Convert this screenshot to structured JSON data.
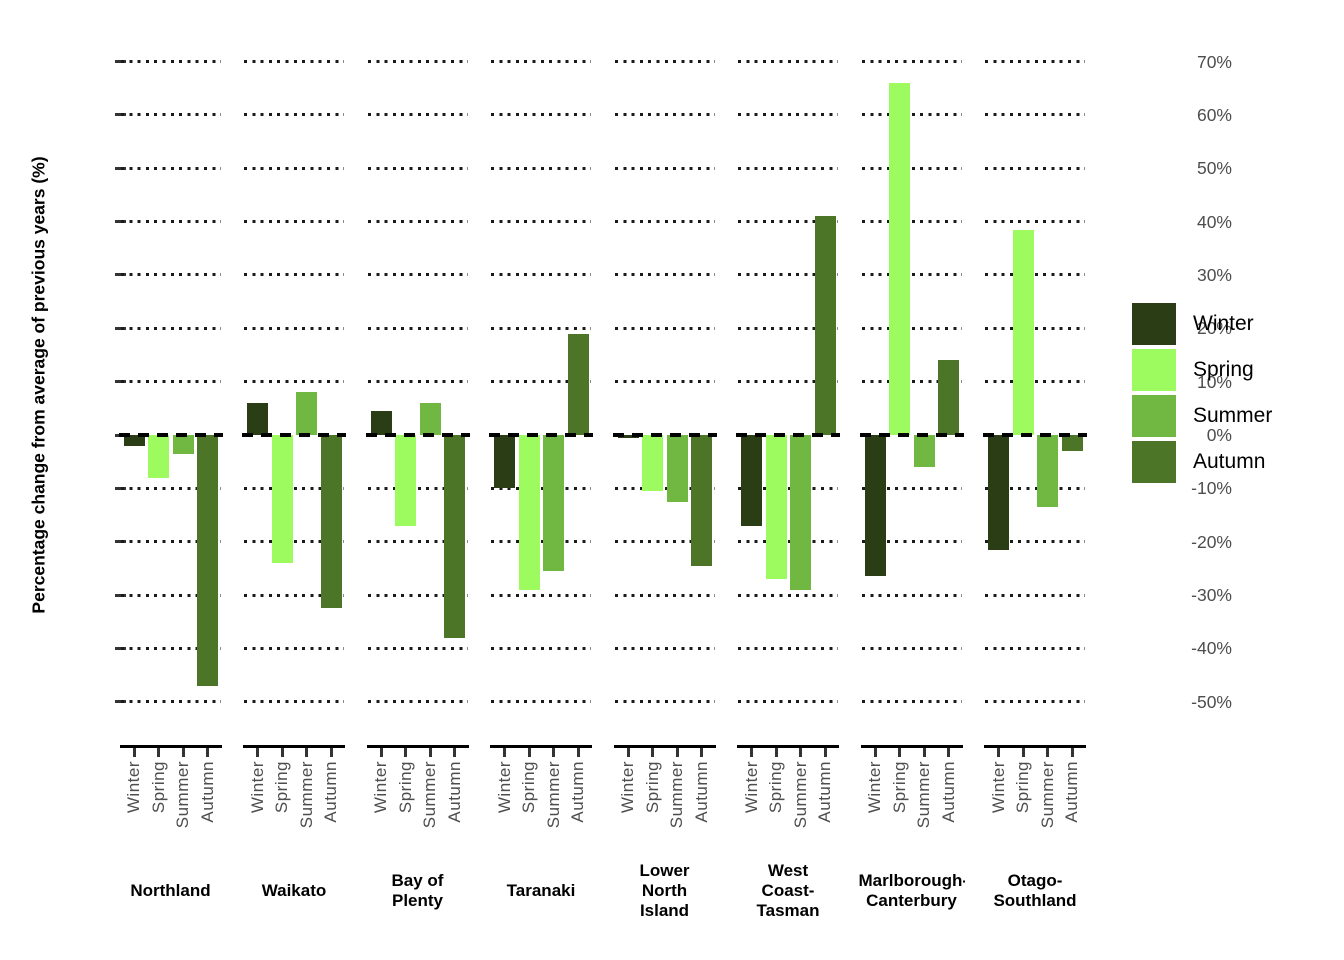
{
  "chart_data": {
    "type": "bar",
    "title": "",
    "ylabel": "Percentage change from average of previous years (%)",
    "ylim": [
      -50,
      70
    ],
    "grid": "dotted-horizontal",
    "zero_line": "dashed-black",
    "legend_position": "right",
    "yticks": [
      {
        "value": 70,
        "label": "70%"
      },
      {
        "value": 60,
        "label": "60%"
      },
      {
        "value": 50,
        "label": "50%"
      },
      {
        "value": 40,
        "label": "40%"
      },
      {
        "value": 30,
        "label": "30%"
      },
      {
        "value": 20,
        "label": "20%"
      },
      {
        "value": 10,
        "label": "10%"
      },
      {
        "value": 0,
        "label": "0%"
      },
      {
        "value": -10,
        "label": "-10%"
      },
      {
        "value": -20,
        "label": "-20%"
      },
      {
        "value": -30,
        "label": "-30%"
      },
      {
        "value": -40,
        "label": "-40%"
      },
      {
        "value": -50,
        "label": "-50%"
      }
    ],
    "categories": [
      "Winter",
      "Spring",
      "Summer",
      "Autumn"
    ],
    "legend": [
      {
        "label": "Winter",
        "color": "#2A3D14"
      },
      {
        "label": "Spring",
        "color": "#9EFB5F"
      },
      {
        "label": "Summer",
        "color": "#71B843"
      },
      {
        "label": "Autumn",
        "color": "#4C7527"
      }
    ],
    "facets": [
      {
        "region": "Northland",
        "label_lines": [
          "Northland"
        ],
        "values": [
          -2,
          -8,
          -3.5,
          -47
        ]
      },
      {
        "region": "Waikato",
        "label_lines": [
          "Waikato"
        ],
        "values": [
          6,
          -24,
          8,
          -32.5
        ]
      },
      {
        "region": "Bay of Plenty",
        "label_lines": [
          "Bay of",
          "Plenty"
        ],
        "values": [
          4.5,
          -17,
          6,
          -38
        ]
      },
      {
        "region": "Taranaki",
        "label_lines": [
          "Taranaki"
        ],
        "values": [
          -10,
          -29,
          -25.5,
          19
        ]
      },
      {
        "region": "Lower North Island",
        "label_lines": [
          "Lower",
          "North",
          "Island"
        ],
        "values": [
          -0.5,
          -10.5,
          -12.5,
          -24.5
        ]
      },
      {
        "region": "West Coast-Tasman",
        "label_lines": [
          "West",
          "Coast-",
          "Tasman"
        ],
        "values": [
          -17,
          -27,
          -29,
          41
        ]
      },
      {
        "region": "Marlborough-Canterbury",
        "label_lines": [
          "Marlborough-",
          "Canterbury"
        ],
        "values": [
          -26.5,
          66,
          -6,
          14
        ]
      },
      {
        "region": "Otago-Southland",
        "label_lines": [
          "Otago-",
          "Southland"
        ],
        "values": [
          -21.5,
          38.5,
          -13.5,
          -3
        ]
      }
    ],
    "colors": {
      "grid_dots": "#1a1a1a",
      "zero_dash": "#000000",
      "axis_text": "#4d4d4d",
      "axis_line": "#000000"
    }
  }
}
